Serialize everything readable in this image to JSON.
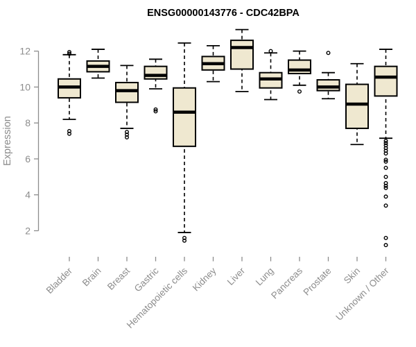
{
  "chart_data": {
    "type": "boxplot",
    "title": "ENSG00000143776 - CDC42BPA",
    "ylabel": "Expression",
    "xlabel": "",
    "ylim": [
      0.55,
      13.3
    ],
    "yticks": [
      2,
      4,
      6,
      8,
      10,
      12
    ],
    "grid": false,
    "legend": "none",
    "categories": [
      "Bladder",
      "Brain",
      "Breast",
      "Gastric",
      "Hematopoietic cells",
      "Kidney",
      "Liver",
      "Lung",
      "Pancreas",
      "Prostate",
      "Skin",
      "Unknown / Other"
    ],
    "boxes": [
      {
        "label": "Bladder",
        "whisker_low": 8.2,
        "q1": 9.4,
        "median": 10.0,
        "q3": 10.45,
        "whisker_high": 11.8,
        "outliers": [
          11.95,
          11.85,
          7.55,
          7.4
        ]
      },
      {
        "label": "Brain",
        "whisker_low": 10.5,
        "q1": 10.85,
        "median": 11.15,
        "q3": 11.45,
        "whisker_high": 12.1,
        "outliers": []
      },
      {
        "label": "Breast",
        "whisker_low": 7.7,
        "q1": 9.15,
        "median": 9.8,
        "q3": 10.25,
        "whisker_high": 11.2,
        "outliers": [
          7.5,
          7.35,
          7.2
        ]
      },
      {
        "label": "Gastric",
        "whisker_low": 9.9,
        "q1": 10.45,
        "median": 10.65,
        "q3": 11.15,
        "whisker_high": 11.55,
        "outliers": [
          8.75,
          8.65
        ]
      },
      {
        "label": "Hematopoietic cells",
        "whisker_low": 1.9,
        "q1": 6.7,
        "median": 8.6,
        "q3": 9.95,
        "whisker_high": 12.45,
        "outliers": [
          1.6,
          1.45
        ]
      },
      {
        "label": "Kidney",
        "whisker_low": 10.3,
        "q1": 10.95,
        "median": 11.3,
        "q3": 11.7,
        "whisker_high": 12.3,
        "outliers": []
      },
      {
        "label": "Liver",
        "whisker_low": 9.75,
        "q1": 11.0,
        "median": 12.2,
        "q3": 12.6,
        "whisker_high": 13.2,
        "outliers": []
      },
      {
        "label": "Lung",
        "whisker_low": 9.3,
        "q1": 9.95,
        "median": 10.45,
        "q3": 10.8,
        "whisker_high": 11.9,
        "outliers": [
          12.0
        ]
      },
      {
        "label": "Pancreas",
        "whisker_low": 10.1,
        "q1": 10.75,
        "median": 10.95,
        "q3": 11.5,
        "whisker_high": 12.0,
        "outliers": [
          9.75
        ]
      },
      {
        "label": "Prostate",
        "whisker_low": 9.35,
        "q1": 9.8,
        "median": 10.0,
        "q3": 10.4,
        "whisker_high": 10.8,
        "outliers": [
          11.9
        ]
      },
      {
        "label": "Skin",
        "whisker_low": 6.8,
        "q1": 7.7,
        "median": 9.05,
        "q3": 10.15,
        "whisker_high": 11.3,
        "outliers": []
      },
      {
        "label": "Unknown / Other",
        "whisker_low": 7.15,
        "q1": 9.5,
        "median": 10.55,
        "q3": 11.15,
        "whisker_high": 12.1,
        "outliers": [
          7.0,
          6.88,
          6.75,
          6.6,
          6.45,
          6.3,
          5.95,
          5.85,
          5.5,
          5.0,
          4.65,
          4.5,
          4.38,
          3.9,
          3.4,
          1.6,
          1.2
        ]
      }
    ]
  },
  "colors": {
    "box_fill": "#EFE8D0",
    "box_stroke": "#000000",
    "median": "#000000",
    "outlier_stroke": "#000000",
    "axis": "#8C8C8C",
    "tick_label": "#8C8C8C",
    "title": "#000000",
    "background": "#FFFFFF"
  }
}
